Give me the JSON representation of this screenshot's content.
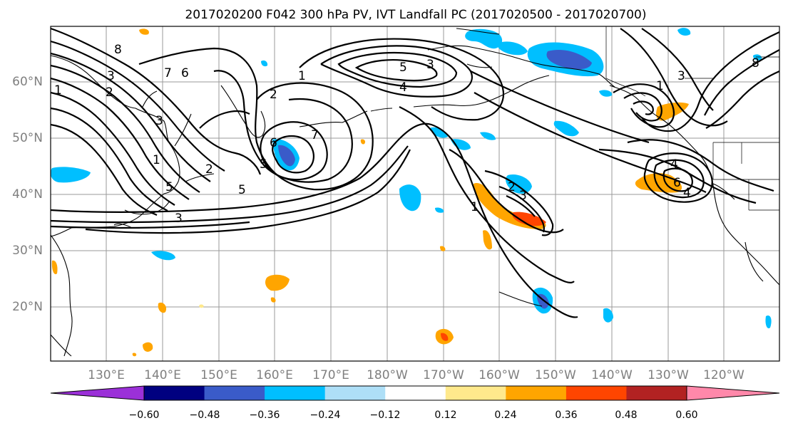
{
  "title": "2017020200 F042 300 hPa PV, IVT Landfall PC (2017020500 - 2017020700)",
  "latitude_labels": [
    "60°N",
    "50°N",
    "40°N",
    "30°N",
    "20°N"
  ],
  "longitude_labels": [
    "130°E",
    "140°E",
    "150°E",
    "160°E",
    "170°E",
    "180°W",
    "170°W",
    "160°W",
    "150°W",
    "140°W",
    "130°W",
    "120°W"
  ],
  "contour_labels": [
    "8",
    "7",
    "6",
    "3",
    "2",
    "1",
    "3",
    "1",
    "2",
    "5",
    "3",
    "7",
    "6",
    "5",
    "5",
    "3",
    "5",
    "4",
    "2",
    "1",
    "3",
    "2",
    "1",
    "1",
    "3",
    "4",
    "6",
    "4",
    "8"
  ],
  "colorbar": {
    "colors": [
      "#9b30d8",
      "#000080",
      "#3a5bc9",
      "#00bfff",
      "#aedff7",
      "#ffffff",
      "#ffe98c",
      "#ffa500",
      "#ff4500",
      "#b22222",
      "#ff88aa"
    ],
    "labels": [
      "−0.60",
      "−0.48",
      "−0.36",
      "−0.24",
      "−0.12",
      "0.12",
      "0.24",
      "0.36",
      "0.48",
      "0.60"
    ]
  }
}
